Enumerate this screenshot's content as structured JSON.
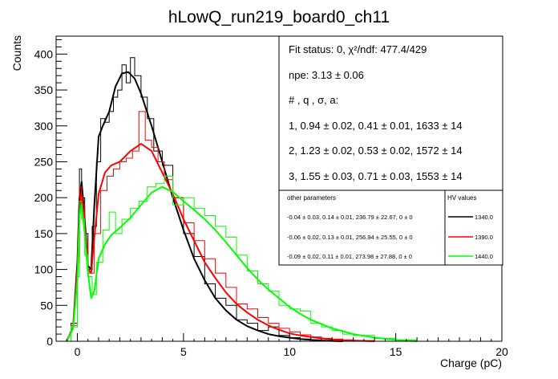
{
  "chart_data": {
    "type": "line",
    "title": "hLowQ_run219_board0_ch11",
    "xlabel": "Charge (pC)",
    "ylabel": "Counts",
    "xlim": [
      -1,
      20
    ],
    "ylim": [
      0,
      425
    ],
    "xticks": [
      0,
      5,
      10,
      15,
      20
    ],
    "yticks": [
      0,
      50,
      100,
      150,
      200,
      250,
      300,
      350,
      400
    ],
    "xtick_labels": [
      "0",
      "5",
      "10",
      "15",
      "20"
    ],
    "ytick_labels": [
      "0",
      "50",
      "100",
      "150",
      "200",
      "250",
      "300",
      "350",
      "400"
    ],
    "grid": false,
    "series": [
      {
        "name": "1340.0",
        "color": "#000000",
        "fit": {
          "x": [
            -0.5,
            -0.2,
            0.0,
            0.1,
            0.2,
            0.35,
            0.5,
            0.65,
            0.8,
            1.0,
            1.2,
            1.5,
            1.8,
            2.1,
            2.4,
            2.7,
            3.0,
            3.5,
            4.0,
            4.5,
            5.0,
            5.5,
            6.0,
            6.5,
            7.0,
            7.5,
            8.0,
            8.5,
            9.0,
            9.5,
            10.0,
            10.5,
            11.0,
            11.5,
            12.0,
            12.5
          ],
          "y": [
            0,
            20,
            110,
            200,
            222,
            170,
            105,
            100,
            190,
            285,
            300,
            320,
            355,
            373,
            375,
            366,
            345,
            300,
            250,
            200,
            155,
            115,
            85,
            60,
            43,
            30,
            21,
            15,
            10,
            7,
            5,
            3,
            2,
            1,
            0.5,
            0
          ]
        },
        "hist": {
          "x": [
            -0.5,
            -0.3,
            0.0,
            0.1,
            0.2,
            0.35,
            0.5,
            0.7,
            0.9,
            1.1,
            1.3,
            1.5,
            1.7,
            1.9,
            2.1,
            2.3,
            2.5,
            2.7,
            3.0,
            3.3,
            3.6,
            4.0,
            4.5,
            5.0,
            5.5,
            6.0,
            6.5,
            7.0,
            7.5,
            8.0,
            8.5,
            9.0,
            9.5,
            10.0,
            10.5,
            11.0,
            11.5,
            12.0
          ],
          "y": [
            0,
            25,
            120,
            240,
            200,
            150,
            100,
            160,
            250,
            310,
            305,
            320,
            340,
            350,
            385,
            360,
            395,
            370,
            340,
            310,
            265,
            245,
            200,
            150,
            118,
            80,
            60,
            50,
            30,
            25,
            15,
            20,
            8,
            5,
            3,
            2,
            1,
            0
          ]
        }
      },
      {
        "name": "1390.0",
        "color": "#ff0000",
        "fit": {
          "x": [
            -0.5,
            -0.2,
            0.0,
            0.1,
            0.2,
            0.35,
            0.5,
            0.65,
            0.8,
            1.0,
            1.3,
            1.6,
            2.0,
            2.5,
            3.0,
            3.5,
            4.0,
            4.5,
            5.0,
            5.5,
            6.0,
            6.5,
            7.0,
            7.5,
            8.0,
            8.5,
            9.0,
            9.5,
            10.0,
            10.5,
            11.0,
            11.5,
            12.0,
            12.5,
            13.0,
            14.0
          ],
          "y": [
            0,
            20,
            100,
            180,
            205,
            160,
            100,
            95,
            145,
            205,
            235,
            245,
            250,
            265,
            275,
            265,
            235,
            205,
            170,
            140,
            110,
            88,
            68,
            52,
            40,
            30,
            22,
            16,
            11,
            8,
            6,
            4,
            2.5,
            1.5,
            1,
            0
          ]
        },
        "hist": {
          "x": [
            -0.5,
            -0.3,
            0.0,
            0.1,
            0.2,
            0.35,
            0.5,
            0.8,
            1.1,
            1.4,
            1.7,
            2.0,
            2.3,
            2.6,
            2.9,
            3.2,
            3.5,
            3.8,
            4.1,
            4.5,
            5.0,
            5.5,
            6.0,
            6.5,
            7.0,
            7.5,
            8.0,
            8.5,
            9.0,
            9.5,
            10.0,
            10.5,
            11.0,
            11.5,
            12.0,
            12.5,
            13.0,
            14.0
          ],
          "y": [
            0,
            22,
            110,
            215,
            190,
            140,
            95,
            150,
            210,
            230,
            240,
            250,
            255,
            265,
            320,
            280,
            270,
            250,
            225,
            200,
            165,
            140,
            115,
            95,
            75,
            52,
            45,
            33,
            25,
            18,
            13,
            9,
            6,
            4,
            3,
            2,
            1,
            0
          ]
        }
      },
      {
        "name": "1440.0",
        "color": "#00ff00",
        "fit": {
          "x": [
            -0.5,
            -0.2,
            0.0,
            0.1,
            0.2,
            0.35,
            0.5,
            0.65,
            0.8,
            1.0,
            1.3,
            1.6,
            2.0,
            2.5,
            3.0,
            3.5,
            4.0,
            4.5,
            5.0,
            5.5,
            6.0,
            6.5,
            7.0,
            7.5,
            8.0,
            8.5,
            9.0,
            9.5,
            10.0,
            10.5,
            11.0,
            12.0,
            13.0,
            14.0,
            15.0,
            16.0
          ],
          "y": [
            0,
            18,
            85,
            175,
            190,
            150,
            95,
            60,
            70,
            115,
            135,
            148,
            158,
            172,
            190,
            207,
            215,
            208,
            195,
            183,
            170,
            155,
            138,
            120,
            102,
            86,
            72,
            60,
            48,
            38,
            30,
            18,
            10,
            5,
            2,
            0
          ]
        },
        "hist": {
          "x": [
            -0.5,
            -0.3,
            0.0,
            0.1,
            0.2,
            0.35,
            0.5,
            0.7,
            0.9,
            1.2,
            1.5,
            1.8,
            2.1,
            2.5,
            2.9,
            3.3,
            3.7,
            4.1,
            4.5,
            5.0,
            5.5,
            6.0,
            6.5,
            7.0,
            7.5,
            8.0,
            8.5,
            9.0,
            9.5,
            10.0,
            10.5,
            11.0,
            11.5,
            12.0,
            12.5,
            13.0,
            14.0,
            15.0,
            16.0
          ],
          "y": [
            0,
            20,
            90,
            195,
            170,
            120,
            90,
            65,
            110,
            155,
            180,
            150,
            170,
            185,
            195,
            215,
            220,
            230,
            190,
            200,
            185,
            175,
            160,
            145,
            120,
            98,
            80,
            70,
            50,
            45,
            42,
            25,
            20,
            15,
            10,
            8,
            4,
            2,
            0
          ]
        }
      }
    ]
  },
  "stats_box": {
    "fit_status": "Fit status: 0, χ²/ndf: 477.4/429",
    "npe": "npe: 3.13 ± 0.06",
    "header": "# , q , σ, a:",
    "rows": [
      "1, 0.94 ± 0.02, 0.41 ± 0.01, 1633 ± 14",
      "2, 1.23 ± 0.02, 0.53 ± 0.02, 1572 ± 14",
      "3, 1.55 ± 0.03, 0.71 ± 0.03, 1553 ± 14"
    ]
  },
  "legend_box": {
    "other_title": "other parameters",
    "hv_title": "HV values",
    "rows": [
      {
        "params": "-0.04 ± 0.03, 0.14 ± 0.01, 236.79 ± 22.67, 0 ± 0",
        "hv": "1340.0",
        "color": "#000000"
      },
      {
        "params": "-0.06 ± 0.02, 0.13 ± 0.01, 256.94 ± 25.55, 0 ± 0",
        "hv": "1390.0",
        "color": "#ff0000"
      },
      {
        "params": "-0.09 ± 0.02, 0.11 ± 0.01, 273.98 ± 27.88, 0 ± 0",
        "hv": "1440.0",
        "color": "#00ff00"
      }
    ]
  }
}
